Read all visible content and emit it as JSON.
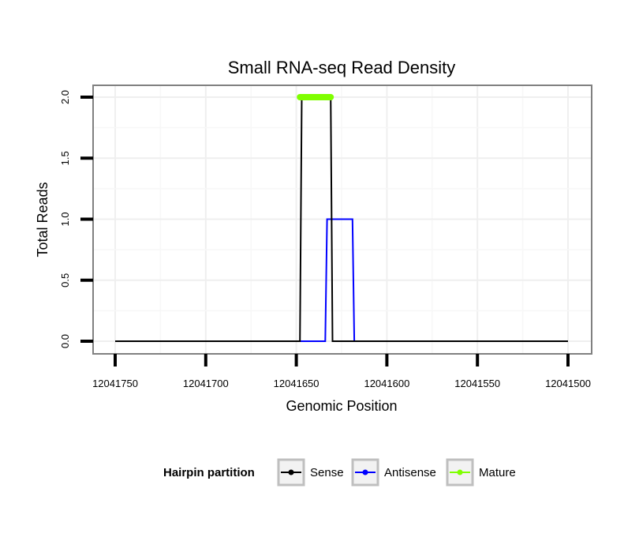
{
  "chart_data": {
    "type": "line",
    "title": "Small RNA-seq Read Density",
    "xlabel": "Genomic Position",
    "ylabel": "Total Reads",
    "x_reversed": true,
    "xlim": [
      12041750,
      12041500
    ],
    "ylim": [
      0,
      2
    ],
    "x_ticks": [
      12041750,
      12041700,
      12041650,
      12041600,
      12041550,
      12041500
    ],
    "x_tick_labels": [
      "12041750",
      "12041700",
      "12041650",
      "12041600",
      "12041550",
      "12041500"
    ],
    "y_ticks": [
      0,
      0.5,
      1,
      1.5,
      2
    ],
    "y_tick_labels": [
      "0.0",
      "0.5",
      "1.0",
      "1.5",
      "2.0"
    ],
    "grid": true,
    "legend_position": "bottom",
    "legend_title": "Hairpin partition",
    "series": [
      {
        "name": "Sense",
        "color": "#000000",
        "points": [
          [
            12041750,
            0
          ],
          [
            12041648,
            0
          ],
          [
            12041647,
            2
          ],
          [
            12041631,
            2
          ],
          [
            12041630,
            0
          ],
          [
            12041500,
            0
          ]
        ]
      },
      {
        "name": "Antisense",
        "color": "#0000ff",
        "points": [
          [
            12041750,
            0
          ],
          [
            12041634,
            0
          ],
          [
            12041633,
            1
          ],
          [
            12041619,
            1
          ],
          [
            12041618,
            0
          ],
          [
            12041500,
            0
          ]
        ]
      },
      {
        "name": "Mature",
        "color": "#7fff00",
        "points": [
          [
            12041648,
            2
          ],
          [
            12041631,
            2
          ]
        ]
      }
    ]
  }
}
